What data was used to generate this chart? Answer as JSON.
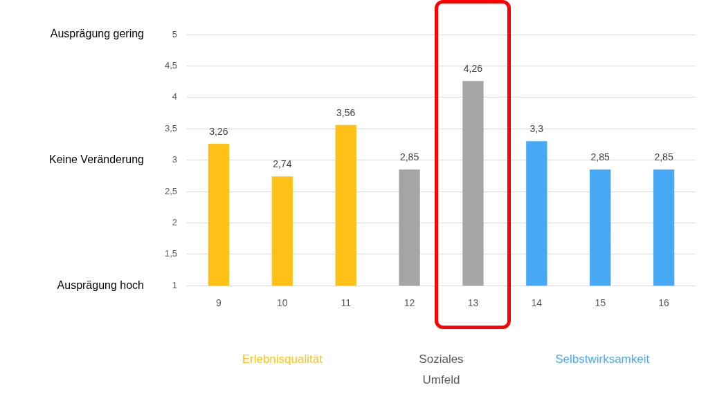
{
  "chart_data": {
    "type": "bar",
    "categories": [
      "9",
      "10",
      "11",
      "12",
      "13",
      "14",
      "15",
      "16"
    ],
    "values": [
      3.26,
      2.74,
      3.56,
      2.85,
      4.26,
      3.3,
      2.85,
      2.85
    ],
    "colors": [
      "#ffc118",
      "#ffc118",
      "#ffc118",
      "#a5a5a5",
      "#a5a5a5",
      "#47a8f5",
      "#47a8f5",
      "#47a8f5"
    ],
    "value_labels": [
      "3,26",
      "2,74",
      "3,56",
      "2,85",
      "4,26",
      "3,3",
      "2,85",
      "2,85"
    ],
    "ylim": [
      1,
      5
    ],
    "yticks": [
      1,
      {
        "value": 1.5,
        "label": "1,5"
      },
      2,
      {
        "value": 2.5,
        "label": "2,5"
      },
      3,
      {
        "value": 3.5,
        "label": "3,5"
      },
      4,
      {
        "value": 4.5,
        "label": "4,5"
      },
      5
    ],
    "grid": "y",
    "annotations": [
      "Ausprägung gering",
      "Keine Veränderung",
      "Ausprägung hoch",
      "Erlebnisqualität",
      "Soziales Umfeld",
      "Selbstwirksamkeit"
    ]
  }
}
